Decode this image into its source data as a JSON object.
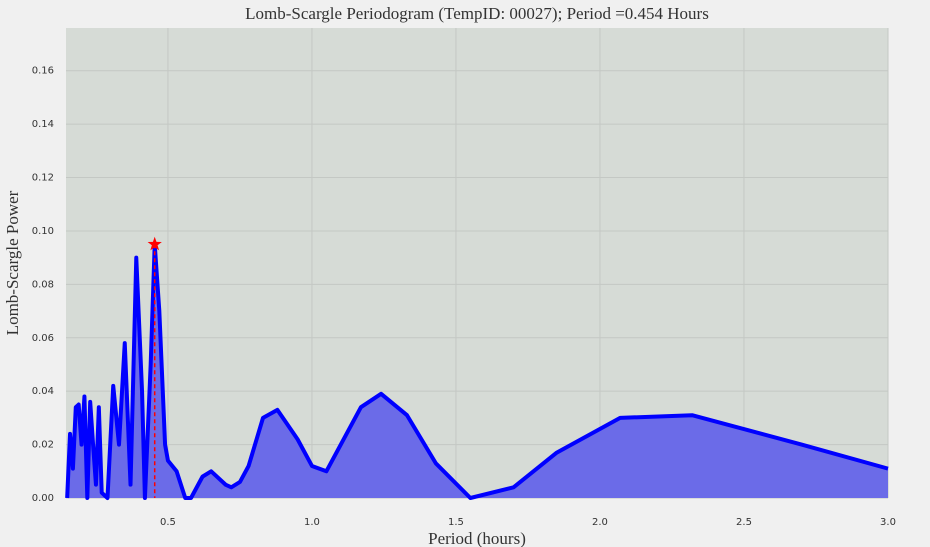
{
  "chart_data": {
    "type": "line",
    "title": "Lomb-Scargle Periodogram (TempID: 00027); Period =0.454 Hours",
    "xlabel": "Period (hours)",
    "ylabel": "Lomb-Scargle Power",
    "x": [
      0.15,
      0.16,
      0.17,
      0.18,
      0.19,
      0.2,
      0.21,
      0.22,
      0.23,
      0.24,
      0.25,
      0.26,
      0.27,
      0.29,
      0.31,
      0.33,
      0.35,
      0.37,
      0.39,
      0.41,
      0.42,
      0.44,
      0.454,
      0.47,
      0.49,
      0.5,
      0.53,
      0.56,
      0.58,
      0.62,
      0.65,
      0.7,
      0.72,
      0.75,
      0.78,
      0.83,
      0.88,
      0.95,
      1.0,
      1.05,
      1.17,
      1.24,
      1.33,
      1.43,
      1.55,
      1.7,
      1.85,
      2.07,
      2.32,
      2.7,
      3.0
    ],
    "series": [
      {
        "color": "#0000ff",
        "fill": "#6b6be8",
        "values": [
          0.0,
          0.024,
          0.011,
          0.034,
          0.035,
          0.02,
          0.038,
          0.0,
          0.036,
          0.02,
          0.005,
          0.034,
          0.002,
          0.0,
          0.042,
          0.02,
          0.058,
          0.005,
          0.09,
          0.04,
          0.0,
          0.05,
          0.095,
          0.07,
          0.02,
          0.014,
          0.01,
          0.0,
          0.0,
          0.008,
          0.01,
          0.005,
          0.004,
          0.006,
          0.012,
          0.03,
          0.033,
          0.022,
          0.012,
          0.01,
          0.034,
          0.039,
          0.031,
          0.013,
          0.0,
          0.004,
          0.017,
          0.03,
          0.031,
          0.02,
          0.011
        ]
      }
    ],
    "peak": {
      "x": 0.454,
      "y": 0.095,
      "color": "#ff0000"
    },
    "xlim": [
      0.146,
      3.0
    ],
    "ylim": [
      0,
      0.176
    ],
    "xticks": [
      {
        "value": 0.5,
        "label": "0.5"
      },
      {
        "value": 1.0,
        "label": "1.0"
      },
      {
        "value": 1.5,
        "label": "1.5"
      },
      {
        "value": 2.0,
        "label": "2.0"
      },
      {
        "value": 2.5,
        "label": "2.5"
      },
      {
        "value": 3.0,
        "label": "3.0"
      }
    ],
    "yticks": [
      {
        "value": 0,
        "label": "0.00"
      },
      {
        "value": 0.02,
        "label": "0.02"
      },
      {
        "value": 0.04,
        "label": "0.04"
      },
      {
        "value": 0.06,
        "label": "0.06"
      },
      {
        "value": 0.08,
        "label": "0.08"
      },
      {
        "value": 0.1,
        "label": "0.10"
      },
      {
        "value": 0.12,
        "label": "0.12"
      },
      {
        "value": 0.14,
        "label": "0.14"
      },
      {
        "value": 0.16,
        "label": "0.16"
      }
    ],
    "grid": true
  }
}
